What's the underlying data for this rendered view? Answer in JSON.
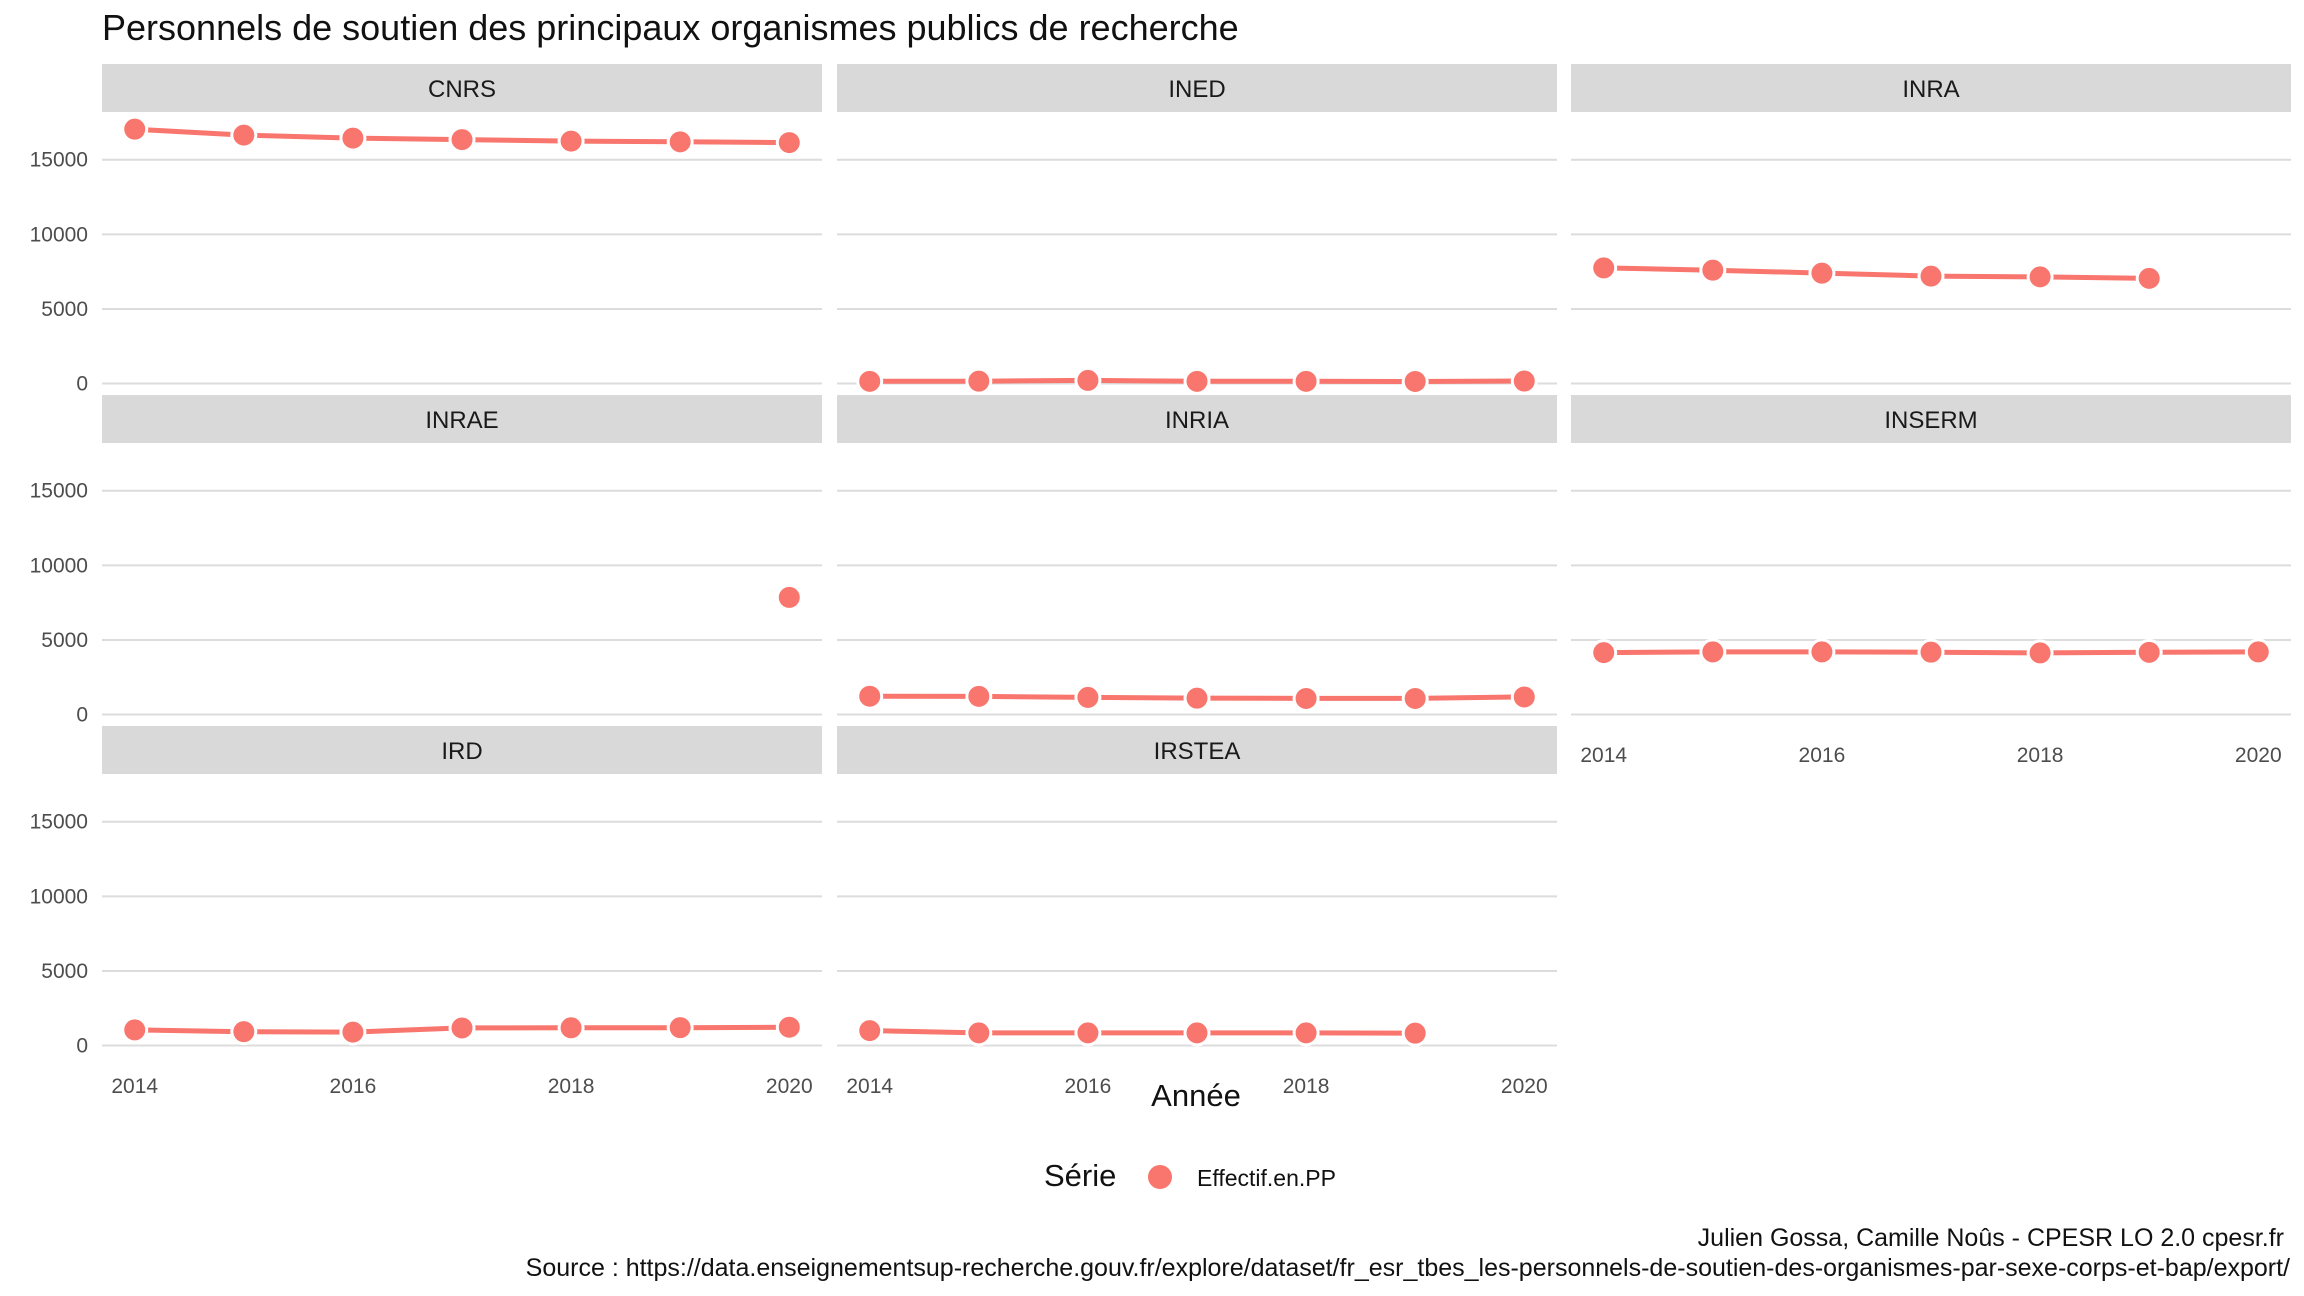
{
  "chart_data": {
    "type": "line",
    "title": "Personnels de soutien des principaux organismes publics de recherche",
    "xlabel": "Année",
    "ylabel": "",
    "x_ticks": [
      2014,
      2016,
      2018,
      2020
    ],
    "y_ticks": [
      0,
      5000,
      10000,
      15000
    ],
    "xlim": [
      2013.7,
      2020.3
    ],
    "ylim": [
      -700,
      18200
    ],
    "grid": true,
    "legend": {
      "title": "Série",
      "position": "bottom",
      "entries": [
        {
          "label": "Effectif.en.PP",
          "color": "#f8766d"
        }
      ]
    },
    "facets": [
      {
        "name": "CNRS",
        "x": [
          2014,
          2015,
          2016,
          2017,
          2018,
          2019,
          2020
        ],
        "y": [
          17050,
          16650,
          16450,
          16350,
          16250,
          16200,
          16150
        ]
      },
      {
        "name": "INED",
        "x": [
          2014,
          2015,
          2016,
          2017,
          2018,
          2019,
          2020
        ],
        "y": [
          150,
          160,
          210,
          150,
          150,
          140,
          170
        ]
      },
      {
        "name": "INRA",
        "x": [
          2014,
          2015,
          2016,
          2017,
          2018,
          2019
        ],
        "y": [
          7750,
          7600,
          7400,
          7200,
          7150,
          7050
        ]
      },
      {
        "name": "INRAE",
        "x": [
          2020
        ],
        "y": [
          7850
        ]
      },
      {
        "name": "INRIA",
        "x": [
          2014,
          2015,
          2016,
          2017,
          2018,
          2019,
          2020
        ],
        "y": [
          1230,
          1220,
          1150,
          1100,
          1080,
          1080,
          1180
        ]
      },
      {
        "name": "INSERM",
        "x": [
          2014,
          2015,
          2016,
          2017,
          2018,
          2019,
          2020
        ],
        "y": [
          4150,
          4200,
          4200,
          4180,
          4130,
          4170,
          4200
        ]
      },
      {
        "name": "IRD",
        "x": [
          2014,
          2015,
          2016,
          2017,
          2018,
          2019,
          2020
        ],
        "y": [
          1050,
          930,
          900,
          1180,
          1190,
          1200,
          1230
        ]
      },
      {
        "name": "IRSTEA",
        "x": [
          2014,
          2015,
          2016,
          2017,
          2018,
          2019
        ],
        "y": [
          1000,
          850,
          850,
          850,
          850,
          830
        ]
      }
    ],
    "series_color": "#f8766d"
  },
  "caption": {
    "line1": "Julien Gossa, Camille Noûs - CPESR LO 2.0 cpesr.fr",
    "line2": "Source : https://data.enseignementsup-recherche.gouv.fr/explore/dataset/fr_esr_tbes_les-personnels-de-soutien-des-organismes-par-sexe-corps-et-bap/export/"
  }
}
